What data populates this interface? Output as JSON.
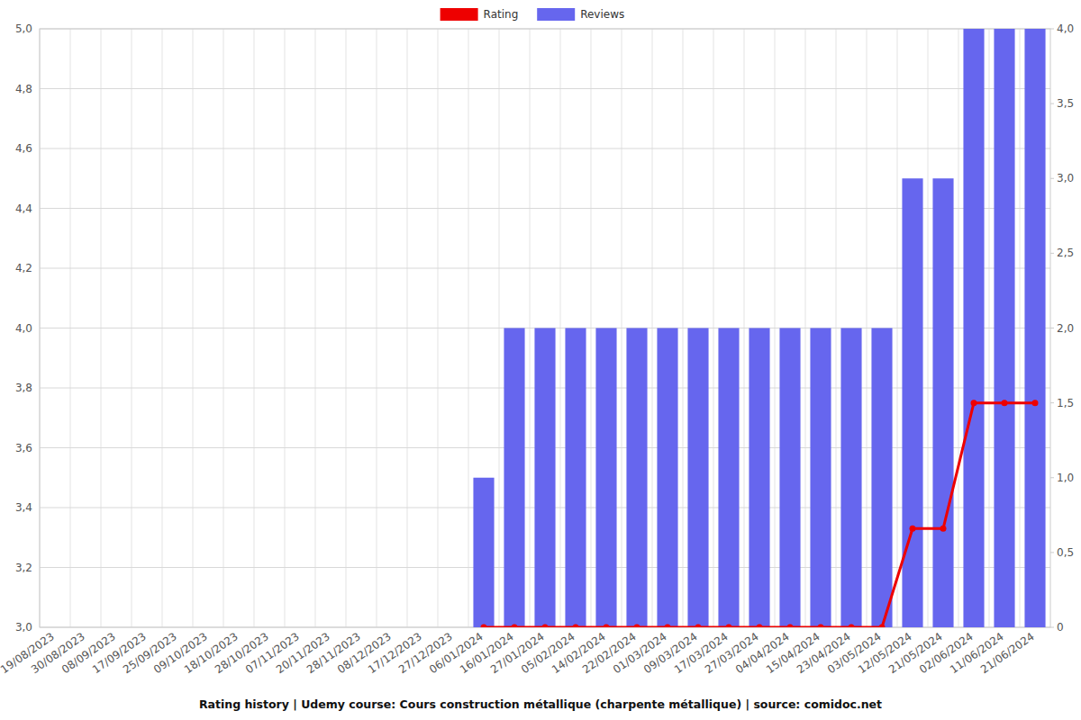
{
  "chart_data": {
    "type": "bar",
    "title": "Rating history | Udemy course: Cours construction métallique (charpente métallique) | source: comidoc.net",
    "categories": [
      "19/08/2023",
      "30/08/2023",
      "08/09/2023",
      "17/09/2023",
      "25/09/2023",
      "09/10/2023",
      "18/10/2023",
      "28/10/2023",
      "07/11/2023",
      "20/11/2023",
      "28/11/2023",
      "08/12/2023",
      "17/12/2023",
      "27/12/2023",
      "06/01/2024",
      "16/01/2024",
      "27/01/2024",
      "05/02/2024",
      "14/02/2024",
      "22/02/2024",
      "01/03/2024",
      "09/03/2024",
      "17/03/2024",
      "27/03/2024",
      "04/04/2024",
      "15/04/2024",
      "23/04/2024",
      "03/05/2024",
      "12/05/2024",
      "21/05/2024",
      "02/06/2024",
      "11/06/2024",
      "21/06/2024"
    ],
    "series": [
      {
        "name": "Rating",
        "type": "line",
        "color": "#ee0000",
        "marker": "circle",
        "values": [
          null,
          null,
          null,
          null,
          null,
          null,
          null,
          null,
          null,
          null,
          null,
          null,
          null,
          null,
          3.0,
          3.0,
          3.0,
          3.0,
          3.0,
          3.0,
          3.0,
          3.0,
          3.0,
          3.0,
          3.0,
          3.0,
          3.0,
          3.0,
          3.33,
          3.33,
          3.75,
          3.75,
          3.75
        ]
      },
      {
        "name": "Reviews",
        "type": "bar",
        "color": "#6666ee",
        "axis": "y2",
        "values": [
          null,
          null,
          null,
          null,
          null,
          null,
          null,
          null,
          null,
          null,
          null,
          null,
          null,
          null,
          1,
          2,
          2,
          2,
          2,
          2,
          2,
          2,
          2,
          2,
          2,
          2,
          2,
          2,
          3,
          3,
          4,
          4,
          4
        ]
      }
    ],
    "ylim": [
      3,
      5
    ],
    "yticks": [
      {
        "value": 3,
        "label": "3,0"
      },
      {
        "value": 3.2,
        "label": "3,2"
      },
      {
        "value": 3.4,
        "label": "3,4"
      },
      {
        "value": 3.6,
        "label": "3,6"
      },
      {
        "value": 3.8,
        "label": "3,8"
      },
      {
        "value": 4,
        "label": "4,0"
      },
      {
        "value": 4.2,
        "label": "4,2"
      },
      {
        "value": 4.4,
        "label": "4,4"
      },
      {
        "value": 4.6,
        "label": "4,6"
      },
      {
        "value": 4.8,
        "label": "4,8"
      },
      {
        "value": 5,
        "label": "5,0"
      }
    ],
    "y2lim": [
      0,
      4
    ],
    "y2ticks": [
      0,
      {
        "value": 0.5,
        "label": "0,5"
      },
      {
        "value": 1,
        "label": "1,0"
      },
      {
        "value": 1.5,
        "label": "1,5"
      },
      {
        "value": 2,
        "label": "2,0"
      },
      {
        "value": 2.5,
        "label": "2,5"
      },
      {
        "value": 3,
        "label": "3,0"
      },
      {
        "value": 3.5,
        "label": "3,5"
      },
      {
        "value": 4,
        "label": "4,0"
      }
    ],
    "grid": true,
    "legend": "top"
  }
}
